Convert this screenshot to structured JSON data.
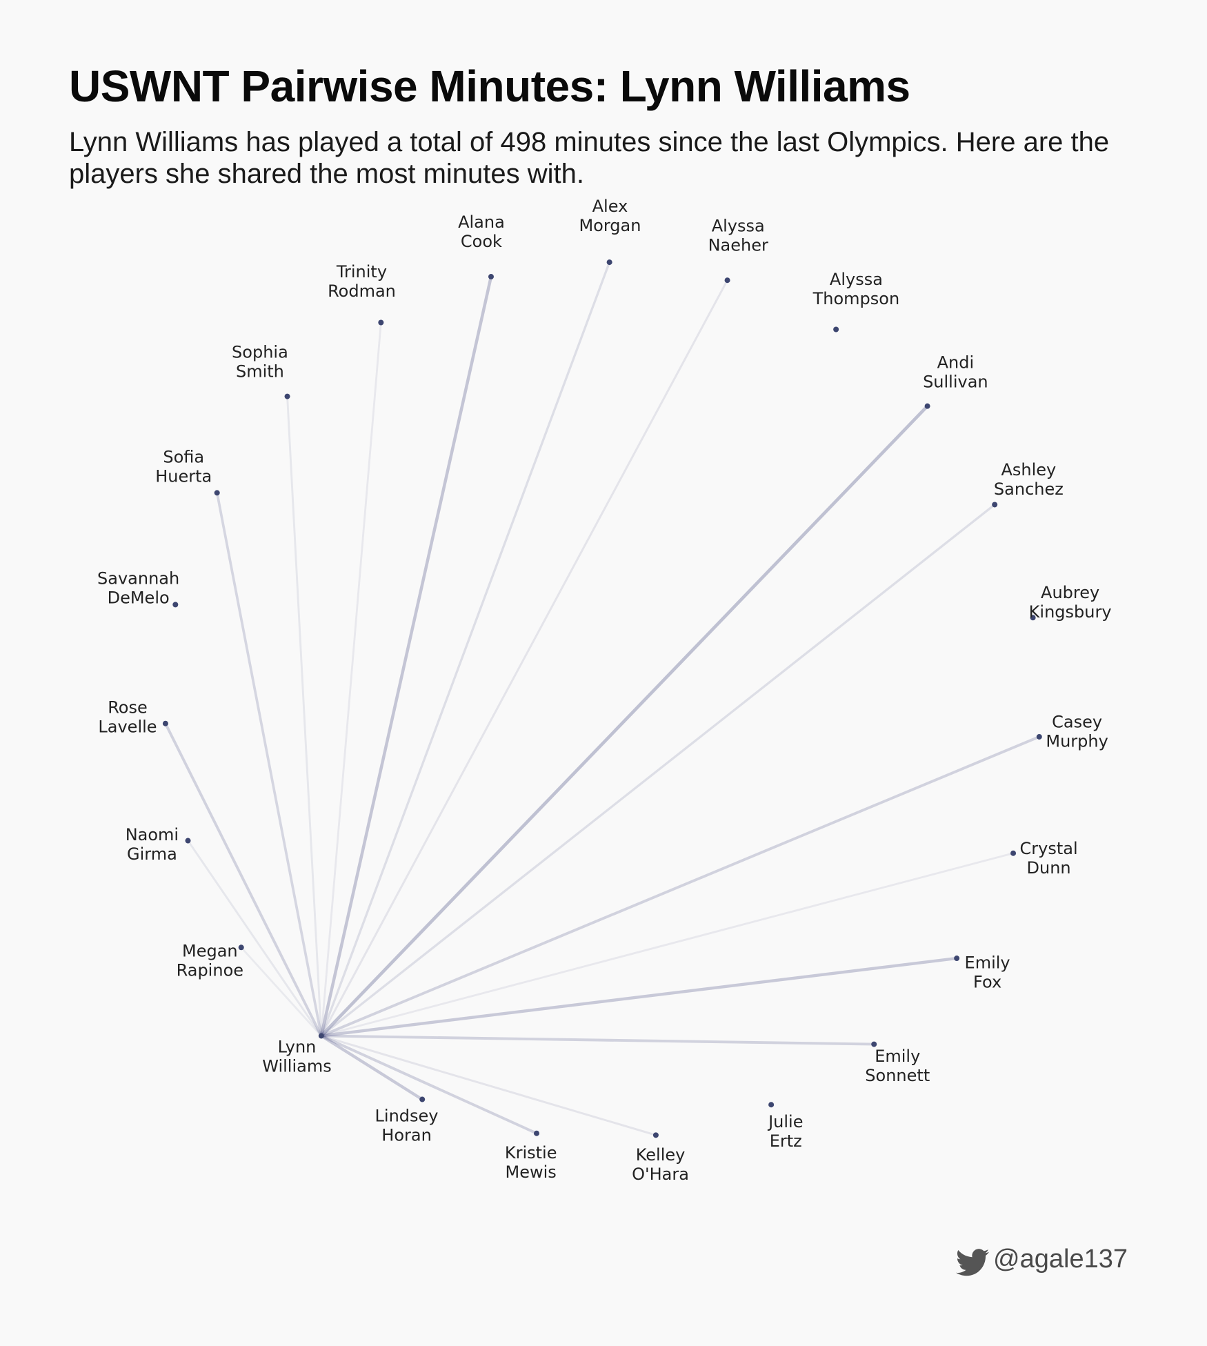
{
  "header": {
    "title": "USWNT Pairwise Minutes: Lynn Williams",
    "subtitle": "Lynn Williams has played a total of 498 minutes since the last Olympics. Here are the players she shared the most minutes with."
  },
  "footer": {
    "icon": "twitter-icon",
    "handle": "@agale137"
  },
  "colors": {
    "node": "#3d4670",
    "edge": "#2e3470",
    "background": "#f9f9f9"
  },
  "chart_data": {
    "type": "network",
    "layout": "circular",
    "focal_player": "Lynn Williams",
    "focal_total_minutes": 498,
    "edge_weight_note": "edge opacity/thickness represents relative shared minutes (0-1, estimated)",
    "players": [
      {
        "name": "Lynn Williams",
        "label": [
          "Lynn",
          "Williams"
        ],
        "weight": null
      },
      {
        "name": "Lindsey Horan",
        "label": [
          "Lindsey",
          "Horan"
        ],
        "weight": 0.45
      },
      {
        "name": "Kristie Mewis",
        "label": [
          "Kristie",
          "Mewis"
        ],
        "weight": 0.35
      },
      {
        "name": "Kelley O'Hara",
        "label": [
          "Kelley",
          "O'Hara"
        ],
        "weight": 0.12
      },
      {
        "name": "Julie Ertz",
        "label": [
          "Julie",
          "Ertz"
        ],
        "weight": 0
      },
      {
        "name": "Emily Sonnett",
        "label": [
          "Emily",
          "Sonnett"
        ],
        "weight": 0.35
      },
      {
        "name": "Emily Fox",
        "label": [
          "Emily",
          "Fox"
        ],
        "weight": 0.45
      },
      {
        "name": "Crystal Dunn",
        "label": [
          "Crystal",
          "Dunn"
        ],
        "weight": 0.08
      },
      {
        "name": "Casey Murphy",
        "label": [
          "Casey",
          "Murphy"
        ],
        "weight": 0.35
      },
      {
        "name": "Aubrey Kingsbury",
        "label": [
          "Aubrey",
          "Kingsbury"
        ],
        "weight": 0
      },
      {
        "name": "Ashley Sanchez",
        "label": [
          "Ashley",
          "Sanchez"
        ],
        "weight": 0.2
      },
      {
        "name": "Andi Sullivan",
        "label": [
          "Andi",
          "Sullivan"
        ],
        "weight": 0.55
      },
      {
        "name": "Alyssa Thompson",
        "label": [
          "Alyssa",
          "Thompson"
        ],
        "weight": 0
      },
      {
        "name": "Alyssa Naeher",
        "label": [
          "Alyssa",
          "Naeher"
        ],
        "weight": 0.12
      },
      {
        "name": "Alex Morgan",
        "label": [
          "Alex",
          "Morgan"
        ],
        "weight": 0.2
      },
      {
        "name": "Alana Cook",
        "label": [
          "Alana",
          "Cook"
        ],
        "weight": 0.5
      },
      {
        "name": "Trinity Rodman",
        "label": [
          "Trinity",
          "Rodman"
        ],
        "weight": 0.08
      },
      {
        "name": "Sophia Smith",
        "label": [
          "Sophia",
          "Smith"
        ],
        "weight": 0.1
      },
      {
        "name": "Sofia Huerta",
        "label": [
          "Sofia",
          "Huerta"
        ],
        "weight": 0.3
      },
      {
        "name": "Savannah DeMelo",
        "label": [
          "Savannah",
          "DeMelo"
        ],
        "weight": 0
      },
      {
        "name": "Rose Lavelle",
        "label": [
          "Rose",
          "Lavelle"
        ],
        "weight": 0.35
      },
      {
        "name": "Naomi Girma",
        "label": [
          "Naomi",
          "Girma"
        ],
        "weight": 0.1
      },
      {
        "name": "Megan Rapinoe",
        "label": [
          "Megan",
          "Rapinoe"
        ],
        "weight": 0.06
      }
    ]
  }
}
